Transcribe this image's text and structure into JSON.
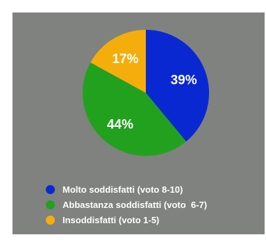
{
  "chart_data": {
    "type": "pie",
    "title": "",
    "slices": [
      {
        "label": "Molto soddisfatti (voto 8-10)",
        "value": 39,
        "display": "39%",
        "color": "#0a28d2"
      },
      {
        "label": "Abbastanza soddisfatti (voto  6-7)",
        "value": 44,
        "display": "44%",
        "color": "#22a11f"
      },
      {
        "label": "Insoddisfatti (voto 1-5)",
        "value": 17,
        "display": "17%",
        "color": "#f5ad0c"
      }
    ],
    "legend_position": "bottom-left",
    "start_angle": "12 o'clock",
    "direction": "clockwise"
  },
  "colors": {
    "background": "#7f827f",
    "label_text": "#ffffff"
  }
}
